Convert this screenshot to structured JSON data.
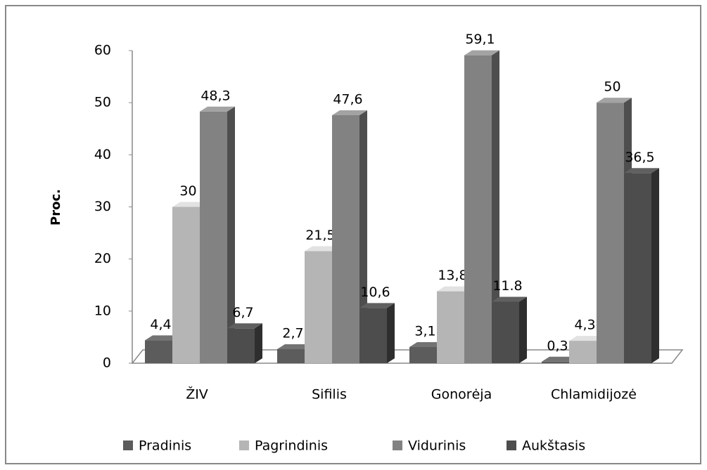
{
  "chart_data": {
    "type": "bar",
    "y_label": "Proc.",
    "categories": [
      "ŽIV",
      "Sifilis",
      "Gonorėja",
      "Chlamidijozė"
    ],
    "series": [
      {
        "name": "Pradinis",
        "color": "#5c5c5c",
        "values": [
          4.4,
          2.7,
          3.1,
          0.3
        ],
        "value_labels": [
          "4,4",
          "2,7",
          "3,1",
          "0,3"
        ]
      },
      {
        "name": "Pagrindinis",
        "color": "#b5b5b5",
        "values": [
          30,
          21.5,
          13.8,
          4.3
        ],
        "value_labels": [
          "30",
          "21,5",
          "13,8",
          "4,3"
        ]
      },
      {
        "name": "Vidurinis",
        "color": "#828282",
        "values": [
          48.3,
          47.6,
          59.1,
          50
        ],
        "value_labels": [
          "48,3",
          "47,6",
          "59,1",
          "50"
        ]
      },
      {
        "name": "Aukštasis",
        "color": "#4d4d4d",
        "values": [
          6.7,
          10.6,
          11.8,
          36.5
        ],
        "value_labels": [
          "6,7",
          "10,6",
          "11.8",
          "36,5"
        ]
      }
    ],
    "ylim": [
      0,
      60
    ],
    "yticks": [
      0,
      10,
      20,
      30,
      40,
      50,
      60
    ],
    "legend": "bottom"
  }
}
